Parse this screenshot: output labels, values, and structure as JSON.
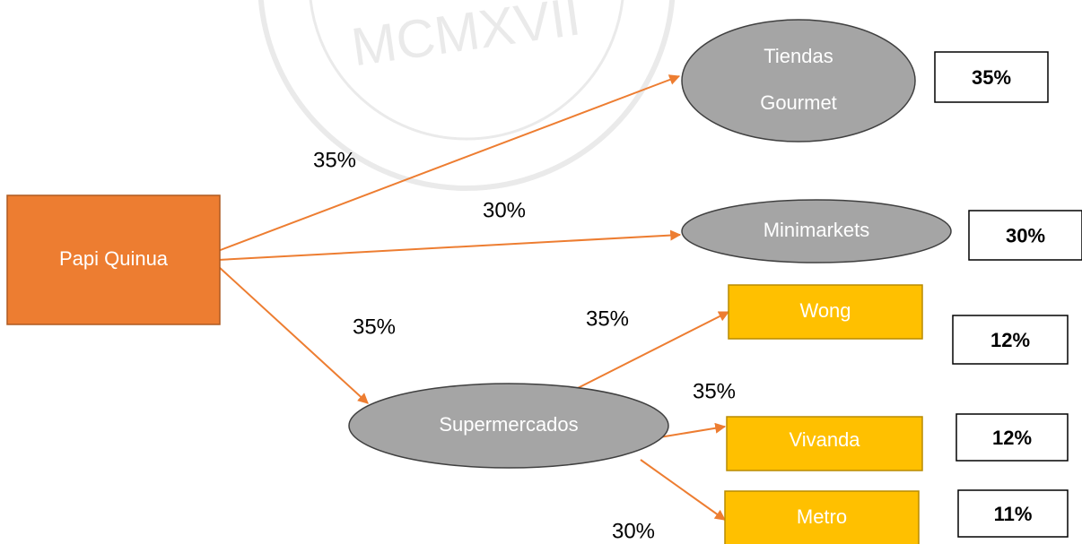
{
  "watermark": "MCMXVII",
  "nodes": [
    {
      "id": "papi",
      "label": [
        "Papi Quinua"
      ]
    },
    {
      "id": "tiendas",
      "label": [
        "Tiendas",
        "Gourmet"
      ]
    },
    {
      "id": "mini",
      "label": [
        "Minimarkets"
      ]
    },
    {
      "id": "super",
      "label": [
        "Supermercados"
      ]
    },
    {
      "id": "wong",
      "label": [
        "Wong"
      ]
    },
    {
      "id": "vivanda",
      "label": [
        "Vivanda"
      ]
    },
    {
      "id": "metro",
      "label": [
        "Metro"
      ]
    }
  ],
  "edges": [
    {
      "from": "papi",
      "to": "tiendas",
      "label": "35%"
    },
    {
      "from": "papi",
      "to": "mini",
      "label": "30%"
    },
    {
      "from": "papi",
      "to": "super",
      "label": "35%"
    },
    {
      "from": "super",
      "to": "wong",
      "label": "35%"
    },
    {
      "from": "super",
      "to": "vivanda",
      "label": "35%"
    },
    {
      "from": "super",
      "to": "metro",
      "label": "30%"
    }
  ],
  "shares": [
    {
      "node": "tiendas",
      "label": "35%"
    },
    {
      "node": "mini",
      "label": "30%"
    },
    {
      "node": "wong",
      "label": "12%"
    },
    {
      "node": "vivanda",
      "label": "12%"
    },
    {
      "node": "metro",
      "label": "11%"
    }
  ]
}
